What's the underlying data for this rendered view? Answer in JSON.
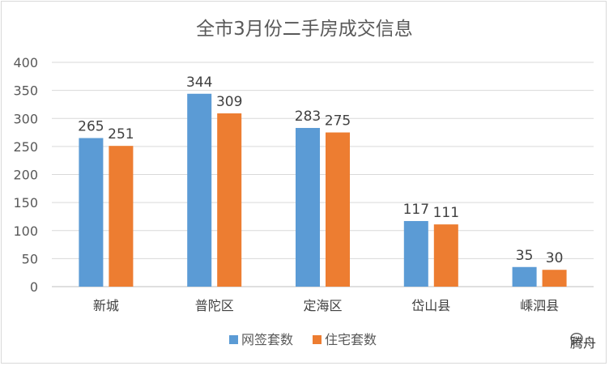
{
  "chart_data": {
    "type": "bar",
    "title": "全市3月份二手房成交信息",
    "categories": [
      "新城",
      "普陀区",
      "定海区",
      "岱山县",
      "嵊泗县"
    ],
    "series": [
      {
        "name": "网签套数",
        "values": [
          265,
          344,
          283,
          117,
          35
        ],
        "color": "#5b9bd5"
      },
      {
        "name": "住宅套数",
        "values": [
          251,
          309,
          275,
          111,
          30
        ],
        "color": "#ed7d31"
      }
    ],
    "yticks": [
      0,
      50,
      100,
      150,
      200,
      250,
      300,
      350,
      400
    ],
    "ylim": [
      0,
      400
    ],
    "grid": true,
    "legend": "bottom"
  },
  "watermark": {
    "text": "腾舟",
    "icon": "wechat-icon"
  }
}
